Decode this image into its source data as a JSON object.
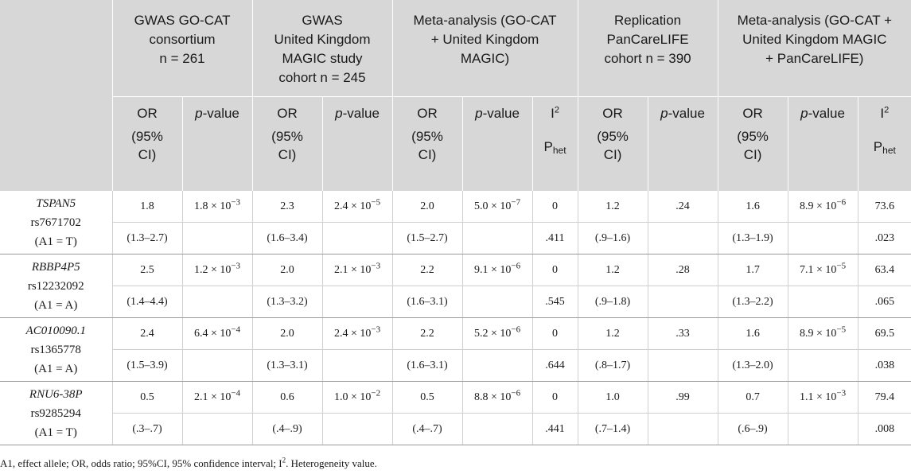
{
  "groups": [
    "GWAS GO-CAT consortium n = 261",
    "GWAS United Kingdom MAGIC study cohort n = 245",
    "Meta-analysis (GO-CAT + United Kingdom MAGIC)",
    "Replication PanCareLIFE cohort n = 390",
    "Meta-analysis (GO-CAT + United Kingdom MAGIC + PanCareLIFE)"
  ],
  "group_lines": [
    [
      "GWAS GO-CAT",
      "consortium",
      "n = 261"
    ],
    [
      "GWAS",
      "United Kingdom",
      "MAGIC study",
      "cohort n = 245"
    ],
    [
      "Meta-analysis (GO-CAT",
      "+ United Kingdom",
      "MAGIC)"
    ],
    [
      "Replication",
      "PanCareLIFE",
      "cohort n = 390"
    ],
    [
      "Meta-analysis (GO-CAT +",
      "United Kingdom MAGIC",
      "+ PanCareLIFE)"
    ]
  ],
  "headers": {
    "or": "OR",
    "p_italic": "p",
    "p_rest": "-value",
    "i": "I",
    "i_sup": "2",
    "ci_line1": "(95%",
    "ci_line2": "CI)",
    "phet_p": "P",
    "phet_sub": "het"
  },
  "rows": [
    {
      "gene": "TSPAN5",
      "snp": "rs7671702",
      "allele": "(A1 = T)",
      "values": [
        "1.8",
        "1.8 × 10",
        "2.3",
        "2.4 × 10",
        "2.0",
        "5.0 × 10",
        "0",
        "1.2",
        ".24",
        "1.6",
        "8.9 × 10",
        "73.6"
      ],
      "exps": [
        "",
        "−3",
        "",
        "−5",
        "",
        "−7",
        "",
        "",
        "",
        "",
        "−6",
        ""
      ],
      "ci": [
        "(1.3–2.7)",
        "",
        "(1.6–3.4)",
        "",
        "(1.5–2.7)",
        "",
        ".411",
        "(.9–1.6)",
        "",
        "(1.3–1.9)",
        "",
        ".023"
      ]
    },
    {
      "gene": "RBBP4P5",
      "snp": "rs12232092",
      "allele": "(A1 = A)",
      "values": [
        "2.5",
        "1.2 × 10",
        "2.0",
        "2.1 × 10",
        "2.2",
        "9.1 × 10",
        "0",
        "1.2",
        ".28",
        "1.7",
        "7.1 × 10",
        "63.4"
      ],
      "exps": [
        "",
        "−3",
        "",
        "−3",
        "",
        "−6",
        "",
        "",
        "",
        "",
        "−5",
        ""
      ],
      "ci": [
        "(1.4–4.4)",
        "",
        "(1.3–3.2)",
        "",
        "(1.6–3.1)",
        "",
        ".545",
        "(.9–1.8)",
        "",
        "(1.3–2.2)",
        "",
        ".065"
      ]
    },
    {
      "gene": "AC010090.1",
      "snp": "rs1365778",
      "allele": "(A1 = A)",
      "values": [
        "2.4",
        "6.4 × 10",
        "2.0",
        "2.4 × 10",
        "2.2",
        "5.2 × 10",
        "0",
        "1.2",
        ".33",
        "1.6",
        "8.9 × 10",
        "69.5"
      ],
      "exps": [
        "",
        "−4",
        "",
        "−3",
        "",
        "−6",
        "",
        "",
        "",
        "",
        "−5",
        ""
      ],
      "ci": [
        "(1.5–3.9)",
        "",
        "(1.3–3.1)",
        "",
        "(1.6–3.1)",
        "",
        ".644",
        "(.8–1.7)",
        "",
        "(1.3–2.0)",
        "",
        ".038"
      ]
    },
    {
      "gene": "RNU6-38P",
      "snp": "rs9285294",
      "allele": "(A1 = T)",
      "values": [
        "0.5",
        "2.1 × 10",
        "0.6",
        "1.0 × 10",
        "0.5",
        "8.8 × 10",
        "0",
        "1.0",
        ".99",
        "0.7",
        "1.1 × 10",
        "79.4"
      ],
      "exps": [
        "",
        "−4",
        "",
        "−2",
        "",
        "−6",
        "",
        "",
        "",
        "",
        "−3",
        ""
      ],
      "ci": [
        "(.3–.7)",
        "",
        "(.4–.9)",
        "",
        "(.4–.7)",
        "",
        ".441",
        "(.7–1.4)",
        "",
        "(.6–.9)",
        "",
        ".008"
      ]
    }
  ],
  "footnote": "A1, effect allele; OR, odds ratio; 95%CI, 95% confidence interval; I",
  "footnote_sup": "2",
  "footnote_end": ". Heterogeneity value."
}
